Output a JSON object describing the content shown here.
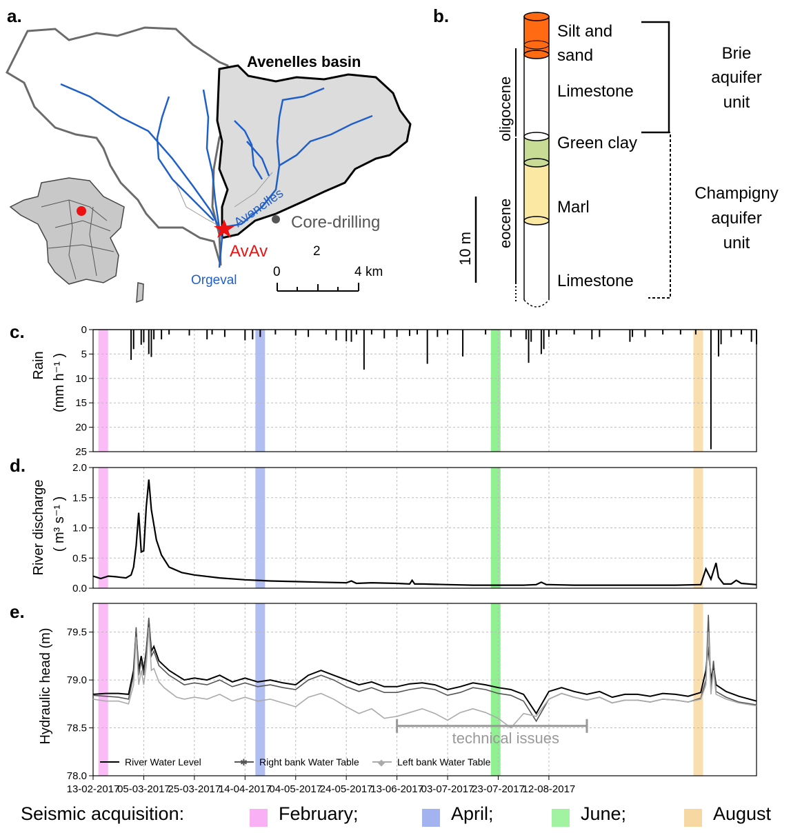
{
  "panel_labels": {
    "a": "a.",
    "b": "b.",
    "c": "c.",
    "d": "d.",
    "e": "e."
  },
  "map": {
    "basin_title": "Avenelles basin",
    "river_avenelles": "Avenelles",
    "river_orgeval": "Orgeval",
    "station": "AvAv",
    "core_drilling": "Core-drilling",
    "scale": {
      "mid": "2",
      "start": "0",
      "end": "4",
      "unit": "km"
    }
  },
  "strat": {
    "layers": [
      "Silt and\nsand",
      "Limestone",
      "Green clay",
      "Marl",
      "Limestone"
    ],
    "silt_line1": "Silt and",
    "silt_line2": "sand",
    "limestone_top": "Limestone",
    "green_clay": "Green clay",
    "marl": "Marl",
    "limestone_bottom": "Limestone",
    "epoch_oligocene": "oligocene",
    "epoch_eocene": "eocene",
    "scale_bar": "10 m",
    "brie_1": "Brie",
    "brie_2": "aquifer",
    "brie_3": "unit",
    "champ_1": "Champigny",
    "champ_2": "aquifer",
    "champ_3": "unit",
    "colors": {
      "silt": "#ff6a13",
      "green_clay": "#c8dc96",
      "marl": "#fbe9a3"
    }
  },
  "chart_data": [
    {
      "type": "bar",
      "panel": "c",
      "ylabel_line1": "Rain",
      "ylabel_line2": "(mm h⁻¹ )",
      "ylim": [
        25,
        0
      ],
      "yticks": [
        "0",
        "5",
        "10",
        "15",
        "20",
        "25"
      ],
      "inverted": true,
      "spikes": [
        {
          "day": 15,
          "v": 6.2
        },
        {
          "day": 16,
          "v": 4.0
        },
        {
          "day": 19,
          "v": 3.1
        },
        {
          "day": 20,
          "v": 2.6
        },
        {
          "day": 22,
          "v": 5.0
        },
        {
          "day": 23,
          "v": 5.6
        },
        {
          "day": 24,
          "v": 2.0
        },
        {
          "day": 27,
          "v": 2.0
        },
        {
          "day": 30,
          "v": 1.0
        },
        {
          "day": 38,
          "v": 1.2
        },
        {
          "day": 45,
          "v": 2.0
        },
        {
          "day": 47,
          "v": 1.0
        },
        {
          "day": 52,
          "v": 1.5
        },
        {
          "day": 60,
          "v": 2.2
        },
        {
          "day": 63,
          "v": 2.0
        },
        {
          "day": 66,
          "v": 1.5
        },
        {
          "day": 72,
          "v": 1.0
        },
        {
          "day": 80,
          "v": 1.2
        },
        {
          "day": 85,
          "v": 1.5
        },
        {
          "day": 92,
          "v": 1.0
        },
        {
          "day": 96,
          "v": 2.2
        },
        {
          "day": 100,
          "v": 2.4
        },
        {
          "day": 102,
          "v": 2.5
        },
        {
          "day": 104,
          "v": 1.0
        },
        {
          "day": 107,
          "v": 8.2
        },
        {
          "day": 110,
          "v": 1.0
        },
        {
          "day": 115,
          "v": 1.8
        },
        {
          "day": 120,
          "v": 1.5
        },
        {
          "day": 125,
          "v": 1.3
        },
        {
          "day": 128,
          "v": 1.0
        },
        {
          "day": 132,
          "v": 7.0
        },
        {
          "day": 136,
          "v": 1.5
        },
        {
          "day": 140,
          "v": 1.0
        },
        {
          "day": 146,
          "v": 5.5
        },
        {
          "day": 155,
          "v": 1.0
        },
        {
          "day": 165,
          "v": 1.5
        },
        {
          "day": 171,
          "v": 2.0
        },
        {
          "day": 172,
          "v": 6.8
        },
        {
          "day": 173,
          "v": 2.5
        },
        {
          "day": 177,
          "v": 5.0
        },
        {
          "day": 178,
          "v": 4.0
        },
        {
          "day": 180,
          "v": 1.5
        },
        {
          "day": 183,
          "v": 1.0
        },
        {
          "day": 190,
          "v": 1.0
        },
        {
          "day": 197,
          "v": 2.0
        },
        {
          "day": 200,
          "v": 1.5
        },
        {
          "day": 212,
          "v": 2.5
        },
        {
          "day": 213,
          "v": 1.5
        },
        {
          "day": 218,
          "v": 1.5
        },
        {
          "day": 225,
          "v": 1.0
        },
        {
          "day": 232,
          "v": 1.0
        },
        {
          "day": 238,
          "v": 1.0
        },
        {
          "day": 244,
          "v": 24.5
        },
        {
          "day": 247,
          "v": 5.5
        },
        {
          "day": 248,
          "v": 3.0
        },
        {
          "day": 252,
          "v": 1.5
        },
        {
          "day": 256,
          "v": 1.0
        },
        {
          "day": 260,
          "v": 2.5
        },
        {
          "day": 262,
          "v": 3.0
        }
      ]
    },
    {
      "type": "line",
      "panel": "d",
      "ylabel_line1": "River discharge",
      "ylabel_line2": "( m³ s⁻¹ )",
      "ylim": [
        0,
        2.0
      ],
      "yticks": [
        "0.0",
        "0.5",
        "1.0",
        "1.5",
        "2.0"
      ],
      "x": [
        0,
        3,
        6,
        9,
        11,
        13,
        15,
        16,
        17,
        18,
        19,
        20,
        21,
        22,
        23,
        25,
        27,
        30,
        35,
        40,
        50,
        60,
        70,
        80,
        90,
        100,
        102,
        104,
        110,
        120,
        125,
        126,
        127,
        130,
        140,
        150,
        160,
        170,
        175,
        177,
        179,
        180,
        190,
        200,
        210,
        220,
        230,
        240,
        242,
        244,
        246,
        247,
        249,
        252,
        254,
        256,
        262
      ],
      "y": [
        0.2,
        0.16,
        0.2,
        0.19,
        0.18,
        0.17,
        0.22,
        0.35,
        0.7,
        1.25,
        0.6,
        0.62,
        1.35,
        1.8,
        1.3,
        0.8,
        0.55,
        0.35,
        0.26,
        0.22,
        0.17,
        0.14,
        0.12,
        0.11,
        0.1,
        0.09,
        0.12,
        0.08,
        0.09,
        0.08,
        0.07,
        0.13,
        0.07,
        0.07,
        0.06,
        0.05,
        0.05,
        0.05,
        0.06,
        0.1,
        0.06,
        0.06,
        0.05,
        0.05,
        0.05,
        0.05,
        0.05,
        0.06,
        0.32,
        0.15,
        0.42,
        0.18,
        0.07,
        0.07,
        0.13,
        0.08,
        0.06
      ]
    },
    {
      "type": "line",
      "panel": "e",
      "ylabel": "Hydraulic head (m)",
      "ylim": [
        78.0,
        79.8
      ],
      "yticks": [
        "78.0",
        "78.5",
        "79.0",
        "79.5"
      ],
      "xticks": [
        "13-02-2017",
        "05-03-2017",
        "25-03-2017",
        "14-04-2017",
        "04-05-2017",
        "24-05-2017",
        "13-06-2017",
        "03-07-2017",
        "23-07-2017",
        "12-08-2017"
      ],
      "legend": [
        "River Water Level",
        "Right bank Water Table",
        "Left bank Water Table"
      ],
      "annotation": "technical issues",
      "annotation_range_days": [
        120,
        195
      ],
      "series": [
        {
          "name": "River Water Level",
          "color": "#000000",
          "x": [
            0,
            5,
            10,
            14,
            16,
            17,
            18,
            19,
            20,
            21,
            22,
            23,
            24,
            26,
            28,
            30,
            33,
            36,
            40,
            45,
            50,
            55,
            60,
            65,
            70,
            75,
            80,
            85,
            90,
            95,
            100,
            105,
            110,
            115,
            120,
            125,
            130,
            135,
            140,
            145,
            150,
            155,
            160,
            165,
            170,
            175,
            180,
            185,
            190,
            195,
            200,
            205,
            210,
            215,
            220,
            225,
            230,
            235,
            240,
            242,
            243,
            244,
            245,
            246,
            250,
            255,
            262
          ],
          "y": [
            78.85,
            78.86,
            78.86,
            78.85,
            79.1,
            79.5,
            79.1,
            79.25,
            79.1,
            79.3,
            79.62,
            79.3,
            79.35,
            79.2,
            79.15,
            79.1,
            79.05,
            79.0,
            79.02,
            79.0,
            79.05,
            78.98,
            79.02,
            78.98,
            79.0,
            78.97,
            78.95,
            79.05,
            79.1,
            79.05,
            79.0,
            78.95,
            78.98,
            78.93,
            78.93,
            78.96,
            78.97,
            78.95,
            78.9,
            78.93,
            78.97,
            78.95,
            78.92,
            78.9,
            78.85,
            78.65,
            78.88,
            78.92,
            78.88,
            78.85,
            78.88,
            78.82,
            78.85,
            78.85,
            78.83,
            78.86,
            78.85,
            78.83,
            78.87,
            79.1,
            79.35,
            79.0,
            79.15,
            78.95,
            78.88,
            78.83,
            78.78
          ]
        },
        {
          "name": "Right bank Water Table",
          "color": "#555555",
          "x": [
            0,
            5,
            10,
            14,
            16,
            17,
            18,
            19,
            20,
            21,
            22,
            23,
            24,
            26,
            28,
            30,
            33,
            36,
            40,
            45,
            50,
            55,
            60,
            65,
            70,
            75,
            80,
            85,
            90,
            95,
            100,
            105,
            110,
            115,
            120,
            125,
            130,
            135,
            140,
            145,
            150,
            155,
            160,
            165,
            170,
            175,
            180,
            185,
            190,
            195,
            200,
            205,
            210,
            215,
            220,
            225,
            230,
            235,
            240,
            242,
            243,
            244,
            245,
            246,
            250,
            255,
            262
          ],
          "y": [
            78.84,
            78.83,
            78.82,
            78.8,
            79.05,
            79.55,
            79.05,
            79.2,
            79.05,
            79.28,
            79.65,
            79.25,
            79.3,
            79.15,
            79.1,
            79.05,
            79.0,
            78.95,
            78.97,
            78.95,
            79.0,
            78.93,
            78.97,
            78.93,
            78.95,
            78.92,
            78.9,
            79.0,
            79.05,
            79.0,
            78.93,
            78.88,
            78.92,
            78.87,
            78.87,
            78.9,
            78.92,
            78.9,
            78.84,
            78.87,
            78.92,
            78.9,
            78.86,
            78.84,
            78.78,
            78.57,
            78.8,
            78.86,
            78.82,
            78.79,
            78.82,
            78.76,
            78.79,
            78.79,
            78.77,
            78.8,
            78.79,
            78.77,
            78.81,
            79.0,
            79.68,
            78.9,
            79.2,
            78.88,
            78.82,
            78.77,
            78.74
          ]
        },
        {
          "name": "Left bank Water Table",
          "color": "#aaaaaa",
          "x": [
            0,
            5,
            10,
            14,
            16,
            17,
            18,
            19,
            20,
            21,
            22,
            23,
            24,
            26,
            28,
            30,
            33,
            36,
            40,
            45,
            50,
            55,
            60,
            65,
            70,
            75,
            80,
            85,
            90,
            95,
            100,
            105,
            110,
            115,
            120,
            125,
            130,
            135,
            140,
            145,
            150,
            155,
            160,
            165,
            170,
            175,
            180,
            185,
            190,
            195,
            200,
            205,
            210,
            215,
            220,
            225,
            230,
            235,
            240,
            242,
            243,
            244,
            245,
            246,
            250,
            255,
            262
          ],
          "y": [
            78.8,
            78.78,
            78.78,
            78.75,
            78.95,
            79.45,
            78.95,
            79.1,
            78.95,
            79.15,
            79.55,
            79.1,
            79.12,
            78.98,
            78.92,
            78.88,
            78.82,
            78.8,
            78.82,
            78.8,
            78.85,
            78.78,
            78.82,
            78.78,
            78.8,
            78.76,
            78.72,
            78.82,
            78.86,
            78.8,
            78.72,
            78.65,
            78.7,
            78.6,
            78.62,
            78.66,
            78.7,
            78.65,
            78.58,
            78.66,
            78.7,
            78.66,
            78.6,
            78.5,
            78.65,
            78.62,
            78.8,
            78.86,
            78.82,
            78.79,
            78.82,
            78.76,
            78.79,
            78.79,
            78.77,
            78.8,
            78.79,
            78.77,
            78.8,
            78.95,
            79.5,
            78.85,
            79.1,
            78.85,
            78.8,
            78.76,
            78.73
          ]
        }
      ]
    }
  ],
  "acquisitions": [
    {
      "label": "February;",
      "color": "#f78ef0",
      "day": 4
    },
    {
      "label": "April;",
      "color": "#7b93e8",
      "day": 66
    },
    {
      "label": "June;",
      "color": "#44e844",
      "day": 159
    },
    {
      "label": "August",
      "color": "#f5c87a",
      "day": 239
    }
  ],
  "legend_title": "Seismic acquisition:"
}
